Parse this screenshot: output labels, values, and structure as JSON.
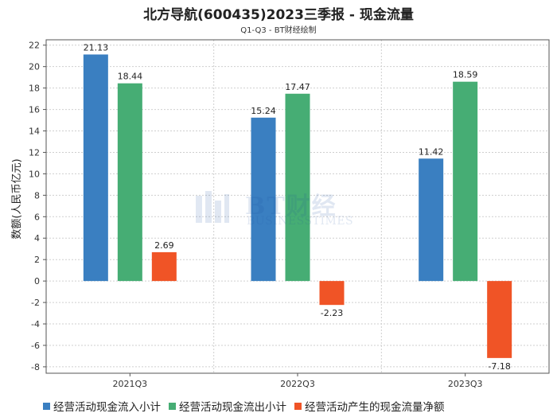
{
  "chart_data": {
    "type": "bar",
    "title": "北方导航(600435)2023三季报 - 现金流量",
    "subtitle": "Q1-Q3 - BT财经绘制",
    "ylabel": "数额(人民币亿元)",
    "xlabel": "",
    "categories": [
      "2021Q3",
      "2022Q3",
      "2023Q3"
    ],
    "series": [
      {
        "name": "经营活动现金流入小计",
        "color": "#3a7fc1",
        "values": [
          21.13,
          15.24,
          11.42
        ]
      },
      {
        "name": "经营活动现金流出小计",
        "color": "#46ad74",
        "values": [
          18.44,
          17.47,
          18.59
        ]
      },
      {
        "name": "经营活动产生的现金流量净额",
        "color": "#f05426",
        "values": [
          2.69,
          -2.23,
          -7.18
        ]
      }
    ],
    "ylim": [
      -8.6,
      22.5
    ],
    "yticks": [
      22,
      20,
      18,
      16,
      14,
      12,
      10,
      8,
      6,
      4,
      2,
      0,
      -2,
      -4,
      -6,
      -8
    ],
    "grid": true,
    "legend_position": "bottom"
  },
  "watermark": {
    "brand": "BT财经",
    "sub": "BUSINESSTIMES"
  }
}
